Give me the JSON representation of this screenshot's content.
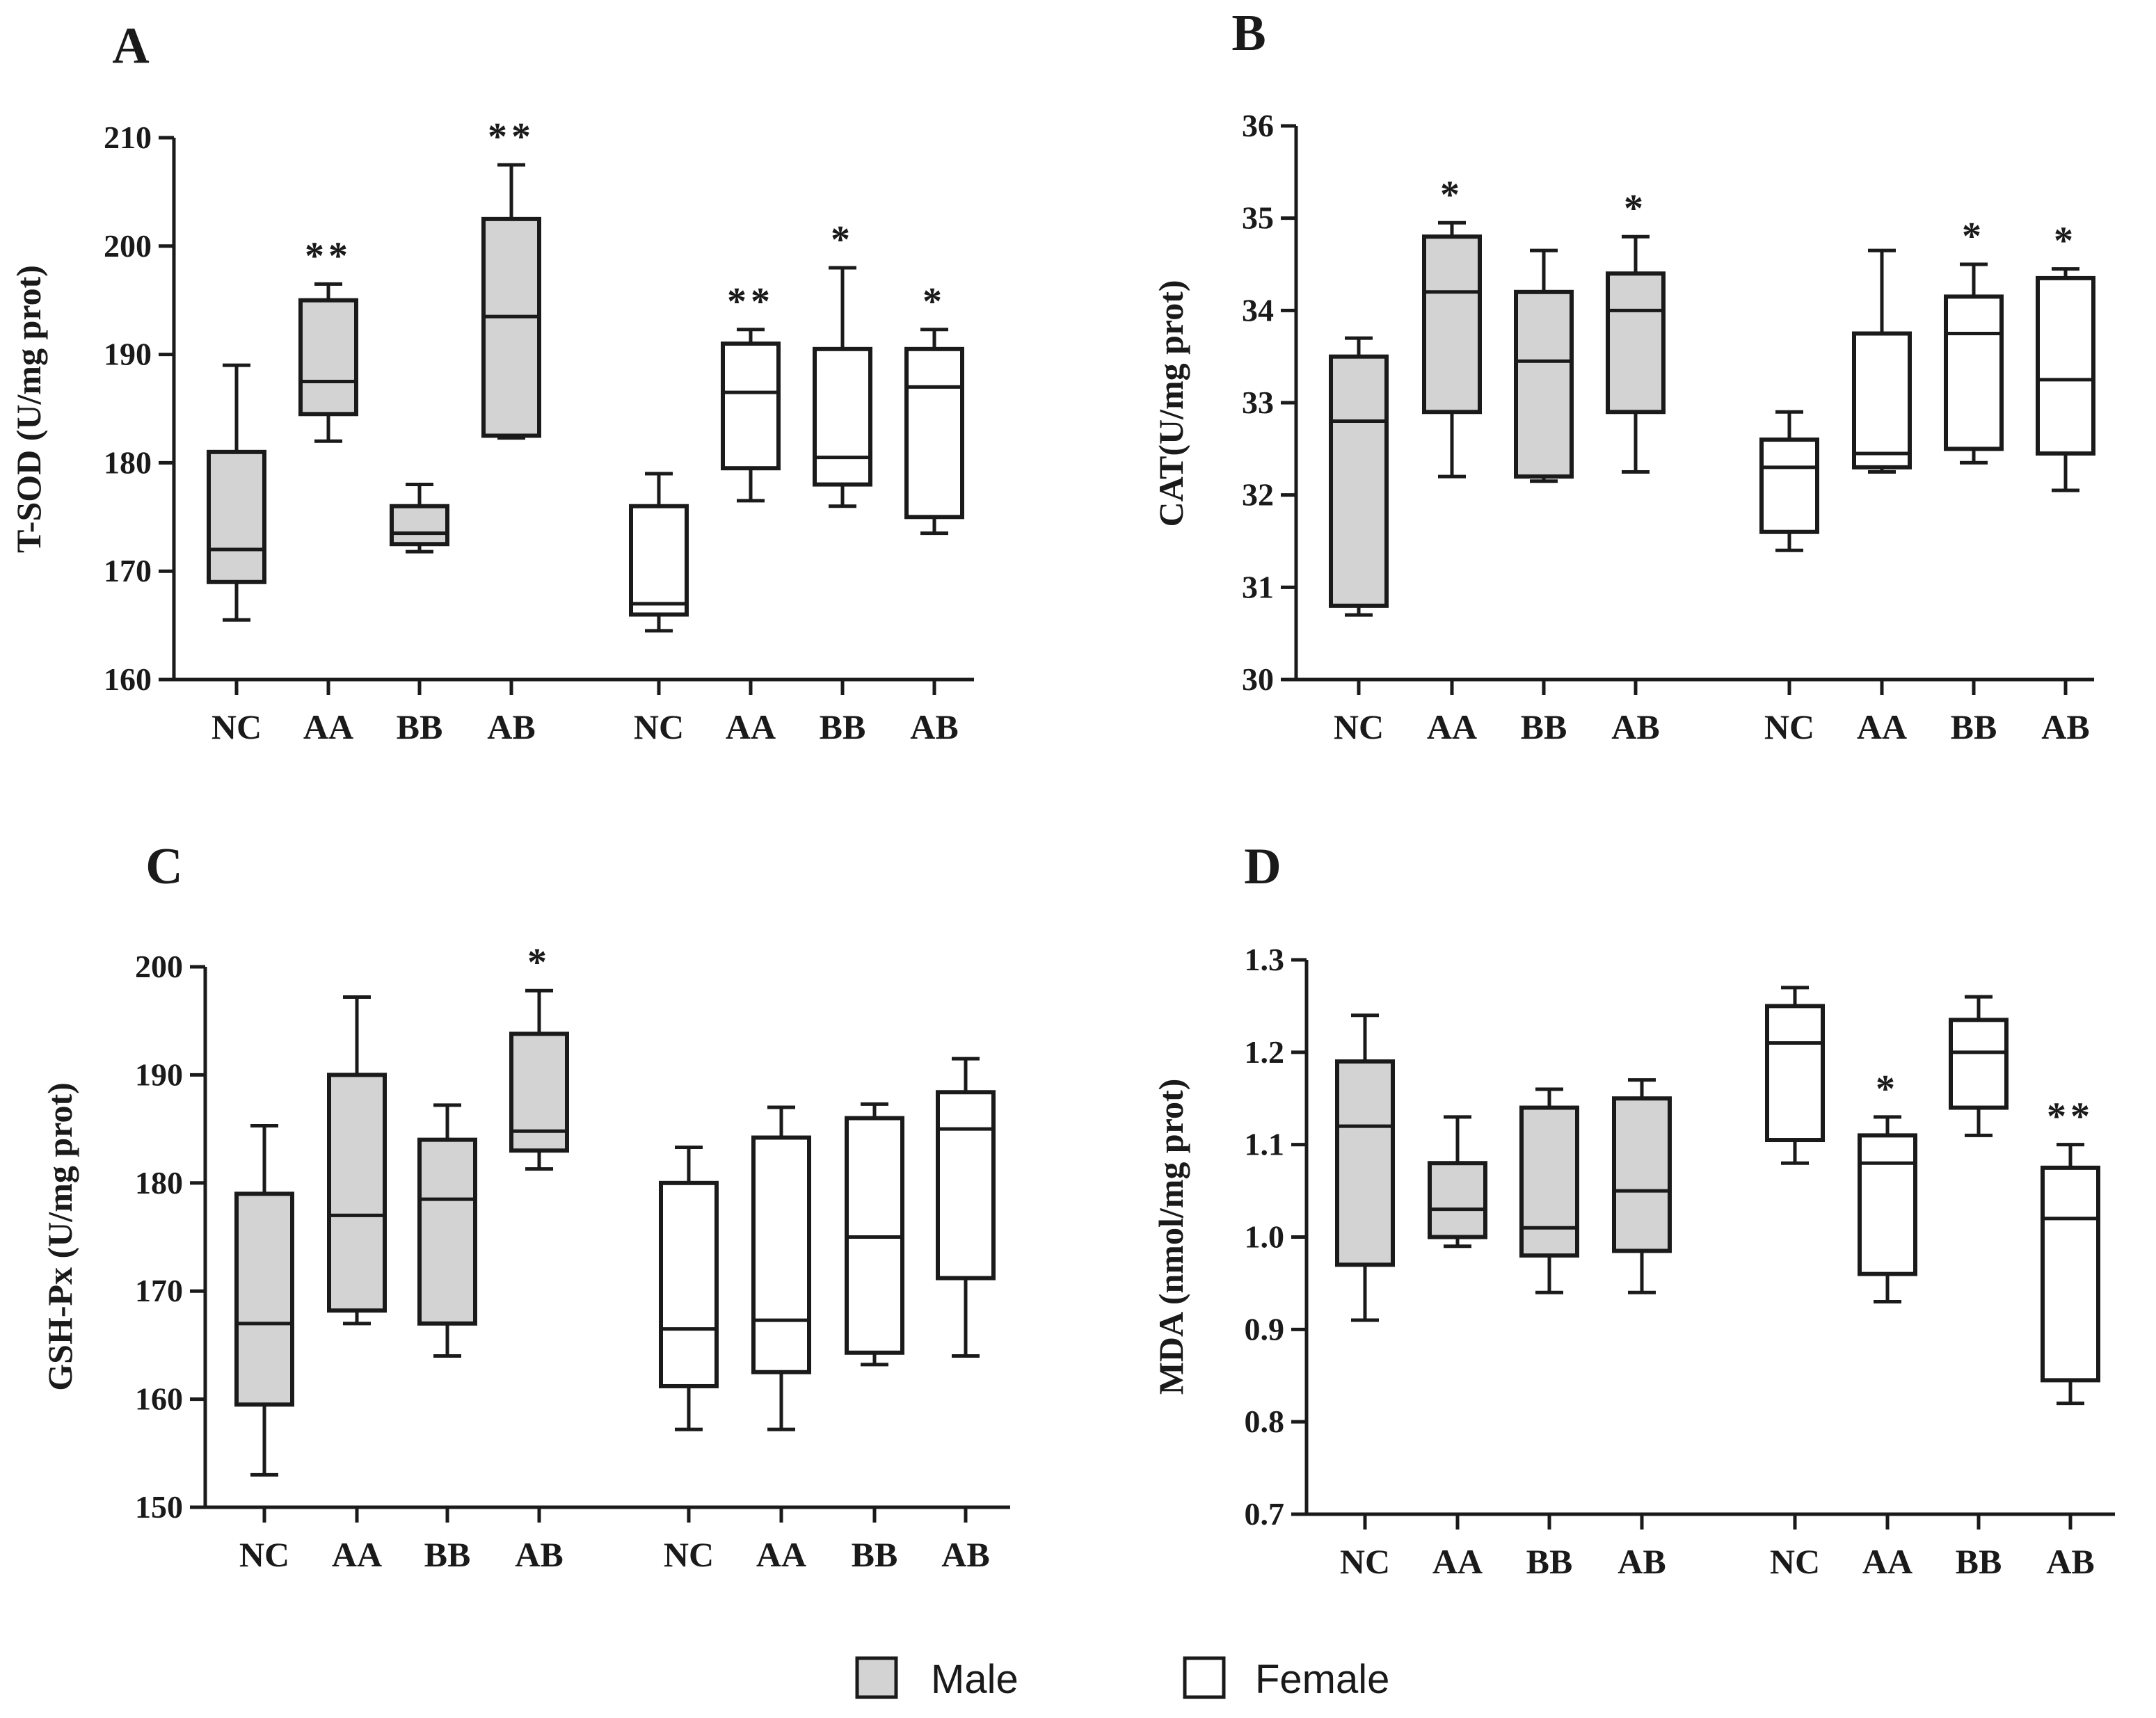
{
  "colors": {
    "male_fill": "#d3d3d3",
    "female_fill": "#ffffff",
    "stroke": "#1a1a1a"
  },
  "legend": {
    "male": "Male",
    "female": "Female"
  },
  "chart_data": [
    {
      "panel": "A",
      "type": "box",
      "ylabel": "T-SOD (U/mg prot)",
      "ylim": [
        160,
        210
      ],
      "yticks": [
        160,
        170,
        180,
        190,
        200,
        210
      ],
      "categories": [
        "NC",
        "AA",
        "BB",
        "AB"
      ],
      "series": [
        {
          "name": "Male",
          "boxes": [
            {
              "min": 165.5,
              "q1": 169,
              "median": 172,
              "q3": 181,
              "max": 189,
              "sig": ""
            },
            {
              "min": 182,
              "q1": 184.5,
              "median": 187.5,
              "q3": 195,
              "max": 196.5,
              "sig": "**"
            },
            {
              "min": 171.8,
              "q1": 172.5,
              "median": 173.5,
              "q3": 176,
              "max": 178,
              "sig": ""
            },
            {
              "min": 182.3,
              "q1": 182.5,
              "median": 193.5,
              "q3": 202.5,
              "max": 207.5,
              "sig": "**"
            }
          ]
        },
        {
          "name": "Female",
          "boxes": [
            {
              "min": 164.5,
              "q1": 166,
              "median": 167,
              "q3": 176,
              "max": 179,
              "sig": ""
            },
            {
              "min": 176.5,
              "q1": 179.5,
              "median": 186.5,
              "q3": 191,
              "max": 192.3,
              "sig": "**"
            },
            {
              "min": 176,
              "q1": 178,
              "median": 180.5,
              "q3": 190.5,
              "max": 198,
              "sig": "*"
            },
            {
              "min": 173.5,
              "q1": 175,
              "median": 187,
              "q3": 190.5,
              "max": 192.3,
              "sig": "*"
            }
          ]
        }
      ]
    },
    {
      "panel": "B",
      "type": "box",
      "ylabel": "CAT(U/mg prot)",
      "ylim": [
        30,
        36
      ],
      "yticks": [
        30,
        31,
        32,
        33,
        34,
        35,
        36
      ],
      "categories": [
        "NC",
        "AA",
        "BB",
        "AB"
      ],
      "series": [
        {
          "name": "Male",
          "boxes": [
            {
              "min": 30.7,
              "q1": 30.8,
              "median": 32.8,
              "q3": 33.5,
              "max": 33.7,
              "sig": ""
            },
            {
              "min": 32.2,
              "q1": 32.9,
              "median": 34.2,
              "q3": 34.8,
              "max": 34.95,
              "sig": "*"
            },
            {
              "min": 32.15,
              "q1": 32.2,
              "median": 33.45,
              "q3": 34.2,
              "max": 34.65,
              "sig": ""
            },
            {
              "min": 32.25,
              "q1": 32.9,
              "median": 34,
              "q3": 34.4,
              "max": 34.8,
              "sig": "*"
            }
          ]
        },
        {
          "name": "Female",
          "boxes": [
            {
              "min": 31.4,
              "q1": 31.6,
              "median": 32.3,
              "q3": 32.6,
              "max": 32.9,
              "sig": ""
            },
            {
              "min": 32.25,
              "q1": 32.3,
              "median": 32.45,
              "q3": 33.75,
              "max": 34.65,
              "sig": ""
            },
            {
              "min": 32.35,
              "q1": 32.5,
              "median": 33.75,
              "q3": 34.15,
              "max": 34.5,
              "sig": "*"
            },
            {
              "min": 32.05,
              "q1": 32.45,
              "median": 33.25,
              "q3": 34.35,
              "max": 34.45,
              "sig": "*"
            }
          ]
        }
      ]
    },
    {
      "panel": "C",
      "type": "box",
      "ylabel": "GSH-Px (U/mg prot)",
      "ylim": [
        150,
        200
      ],
      "yticks": [
        150,
        160,
        170,
        180,
        190,
        200
      ],
      "categories": [
        "NC",
        "AA",
        "BB",
        "AB"
      ],
      "series": [
        {
          "name": "Male",
          "boxes": [
            {
              "min": 153,
              "q1": 159.5,
              "median": 167,
              "q3": 179,
              "max": 185.3,
              "sig": ""
            },
            {
              "min": 167,
              "q1": 168.2,
              "median": 177,
              "q3": 190,
              "max": 197.2,
              "sig": ""
            },
            {
              "min": 164,
              "q1": 167,
              "median": 178.5,
              "q3": 184,
              "max": 187.2,
              "sig": ""
            },
            {
              "min": 181.3,
              "q1": 183,
              "median": 184.8,
              "q3": 193.8,
              "max": 197.8,
              "sig": "*"
            }
          ]
        },
        {
          "name": "Female",
          "boxes": [
            {
              "min": 157.2,
              "q1": 161.2,
              "median": 166.5,
              "q3": 180,
              "max": 183.3,
              "sig": ""
            },
            {
              "min": 157.2,
              "q1": 162.5,
              "median": 167.3,
              "q3": 184.2,
              "max": 187,
              "sig": ""
            },
            {
              "min": 163.2,
              "q1": 164.3,
              "median": 175,
              "q3": 186,
              "max": 187.3,
              "sig": ""
            },
            {
              "min": 164,
              "q1": 171.2,
              "median": 185,
              "q3": 188.4,
              "max": 191.5,
              "sig": ""
            }
          ]
        }
      ]
    },
    {
      "panel": "D",
      "type": "box",
      "ylabel": "MDA (nmol/mg prot)",
      "ylim": [
        0.7,
        1.3
      ],
      "yticks": [
        "0.7",
        "0.8",
        "0.9",
        "1.0",
        "1.1",
        "1.2",
        "1.3"
      ],
      "categories": [
        "NC",
        "AA",
        "BB",
        "AB"
      ],
      "series": [
        {
          "name": "Male",
          "boxes": [
            {
              "min": 0.91,
              "q1": 0.97,
              "median": 1.12,
              "q3": 1.19,
              "max": 1.24,
              "sig": ""
            },
            {
              "min": 0.99,
              "q1": 1.0,
              "median": 1.03,
              "q3": 1.08,
              "max": 1.13,
              "sig": ""
            },
            {
              "min": 0.94,
              "q1": 0.98,
              "median": 1.01,
              "q3": 1.14,
              "max": 1.16,
              "sig": ""
            },
            {
              "min": 0.94,
              "q1": 0.985,
              "median": 1.05,
              "q3": 1.15,
              "max": 1.17,
              "sig": ""
            }
          ]
        },
        {
          "name": "Female",
          "boxes": [
            {
              "min": 1.08,
              "q1": 1.105,
              "median": 1.21,
              "q3": 1.25,
              "max": 1.27,
              "sig": ""
            },
            {
              "min": 0.93,
              "q1": 0.96,
              "median": 1.08,
              "q3": 1.11,
              "max": 1.13,
              "sig": "*"
            },
            {
              "min": 1.11,
              "q1": 1.14,
              "median": 1.2,
              "q3": 1.235,
              "max": 1.26,
              "sig": ""
            },
            {
              "min": 0.82,
              "q1": 0.845,
              "median": 1.02,
              "q3": 1.075,
              "max": 1.1,
              "sig": "**"
            }
          ]
        }
      ]
    }
  ]
}
